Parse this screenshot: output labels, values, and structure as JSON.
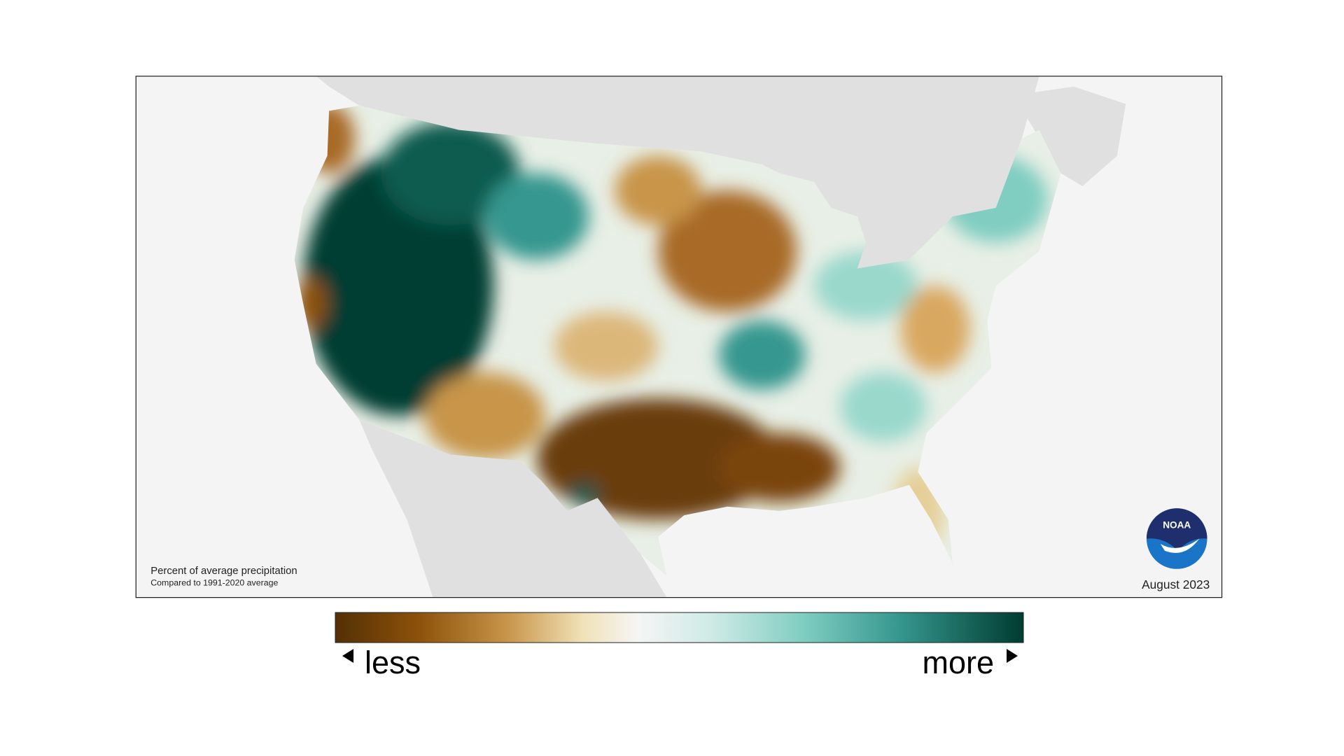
{
  "map": {
    "caption": {
      "title": "Percent of average precipitation",
      "subtitle": "Compared to 1991-2020 average"
    },
    "period": "August 2023",
    "logo": "NOAA",
    "legend": {
      "low": "less",
      "high": "more"
    }
  }
}
